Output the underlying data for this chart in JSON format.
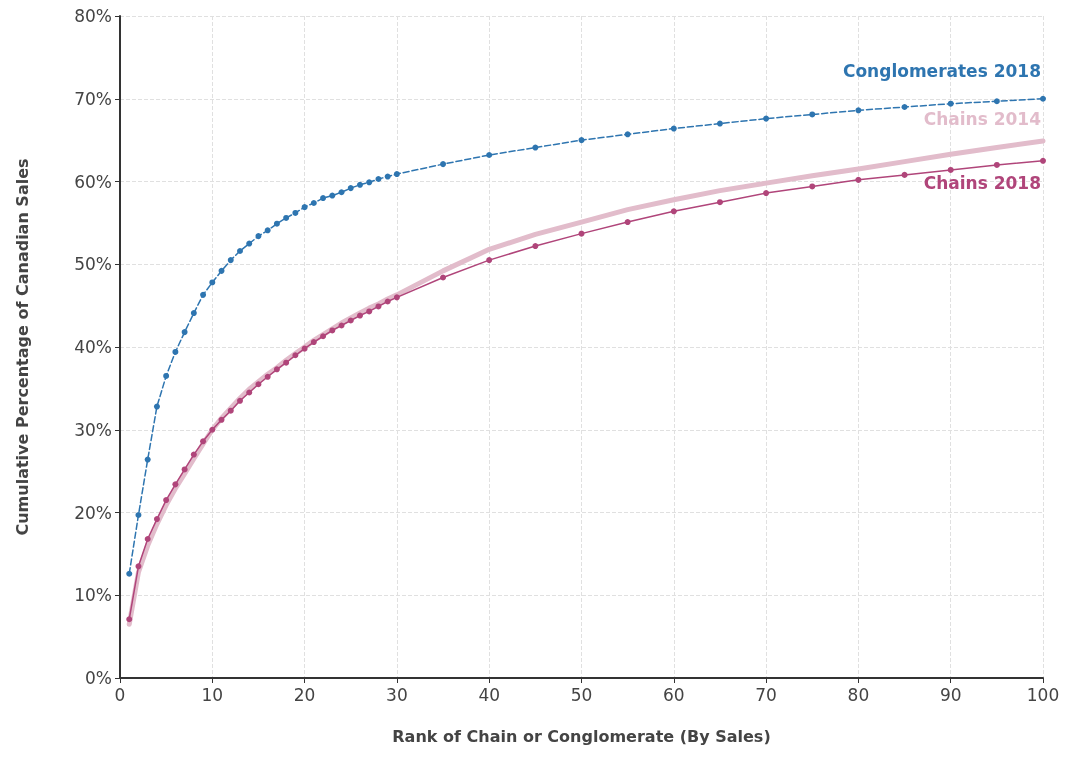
{
  "chart_data": {
    "type": "line",
    "xlabel": "Rank of Chain or Conglomerate (By Sales)",
    "ylabel": "Cumulative Percentage of Canadian Sales",
    "x": [
      1,
      2,
      3,
      4,
      5,
      6,
      7,
      8,
      9,
      10,
      11,
      12,
      13,
      14,
      15,
      16,
      17,
      18,
      19,
      20,
      21,
      22,
      23,
      24,
      25,
      26,
      27,
      28,
      29,
      30,
      35,
      40,
      45,
      50,
      55,
      60,
      65,
      70,
      75,
      80,
      85,
      90,
      95,
      100
    ],
    "series": [
      {
        "name": "Conglomerates 2018",
        "color": "#2e75b0",
        "line_style": "dashed",
        "values": [
          12.6,
          19.7,
          26.4,
          32.8,
          36.5,
          39.4,
          41.8,
          44.1,
          46.3,
          47.8,
          49.2,
          50.5,
          51.6,
          52.5,
          53.4,
          54.1,
          54.9,
          55.6,
          56.2,
          56.9,
          57.4,
          58.0,
          58.3,
          58.7,
          59.2,
          59.6,
          59.9,
          60.3,
          60.6,
          60.9,
          62.1,
          63.2,
          64.1,
          65.0,
          65.7,
          66.4,
          67.0,
          67.6,
          68.1,
          68.6,
          69.0,
          69.4,
          69.7,
          70.0
        ]
      },
      {
        "name": "Chains 2014",
        "color": "#e2bccb",
        "marker": "none",
        "values": [
          6.5,
          12.8,
          16.0,
          18.6,
          20.9,
          22.9,
          24.7,
          26.5,
          28.3,
          30.0,
          31.4,
          32.6,
          33.8,
          34.9,
          35.8,
          36.7,
          37.5,
          38.4,
          39.2,
          40.0,
          40.8,
          41.5,
          42.2,
          42.9,
          43.5,
          44.1,
          44.7,
          45.2,
          45.8,
          46.3,
          49.2,
          51.8,
          53.6,
          55.1,
          56.6,
          57.8,
          58.9,
          59.8,
          60.7,
          61.5,
          62.4,
          63.3,
          64.1,
          64.9
        ]
      },
      {
        "name": "Chains 2018",
        "color": "#b0457a",
        "values": [
          7.1,
          13.5,
          16.8,
          19.2,
          21.5,
          23.4,
          25.2,
          27.0,
          28.6,
          30.0,
          31.2,
          32.3,
          33.5,
          34.5,
          35.5,
          36.4,
          37.3,
          38.1,
          39.0,
          39.8,
          40.6,
          41.3,
          42.0,
          42.6,
          43.2,
          43.8,
          44.3,
          44.9,
          45.5,
          46.0,
          48.4,
          50.5,
          52.2,
          53.7,
          55.1,
          56.4,
          57.5,
          58.6,
          59.4,
          60.2,
          60.8,
          61.4,
          62.0,
          62.5
        ]
      }
    ],
    "xlim": [
      0,
      100
    ],
    "xticks": [
      0,
      10,
      20,
      30,
      40,
      50,
      60,
      70,
      80,
      90,
      100
    ],
    "ylim": [
      0,
      80
    ],
    "yticks": [
      {
        "value": 0,
        "label": "0%"
      },
      {
        "value": 10,
        "label": "10%"
      },
      {
        "value": 20,
        "label": "20%"
      },
      {
        "value": 30,
        "label": "30%"
      },
      {
        "value": 40,
        "label": "40%"
      },
      {
        "value": 50,
        "label": "50%"
      },
      {
        "value": 60,
        "label": "60%"
      },
      {
        "value": 70,
        "label": "70%"
      },
      {
        "value": 80,
        "label": "80%"
      }
    ],
    "grid": true,
    "legend": false,
    "marker": "circle",
    "line_style": "solid"
  }
}
